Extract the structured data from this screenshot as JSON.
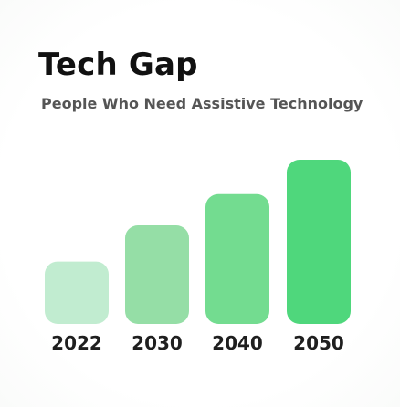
{
  "header": {
    "title": "Tech Gap",
    "subtitle": "People Who Need Assistive Technology"
  },
  "chart_data": {
    "type": "bar",
    "title": "Tech Gap",
    "subtitle": "People Who Need Assistive Technology",
    "categories": [
      "2022",
      "2030",
      "2040",
      "2050"
    ],
    "values": [
      0.38,
      0.6,
      0.79,
      1.0
    ],
    "value_scale": "relative (tallest bar = 1.0); no axis or data labels shown",
    "colors": [
      "#c1ecd0",
      "#95dea6",
      "#73dc90",
      "#4fd77c"
    ],
    "xlabel": "",
    "ylabel": "",
    "ylim": [
      0,
      1
    ],
    "grid": false,
    "legend": "none"
  }
}
